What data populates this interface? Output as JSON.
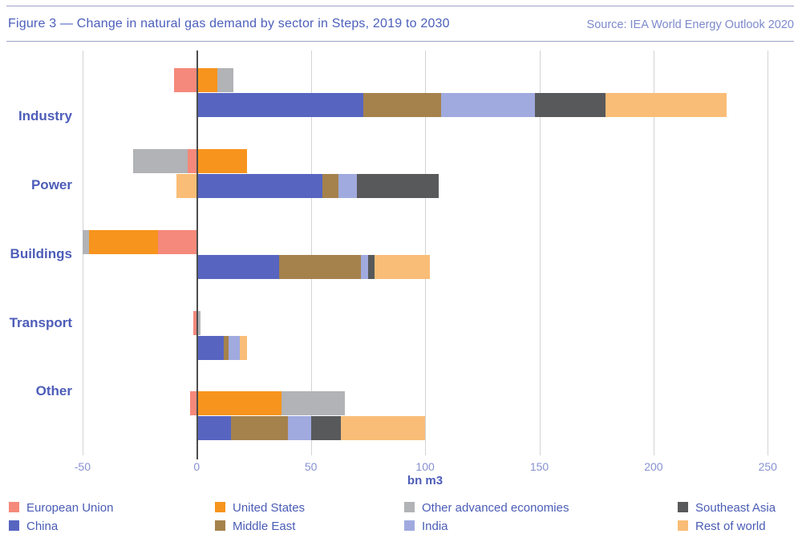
{
  "header": {
    "title": "Figure 3 — Change in natural gas demand by sector in Steps, 2019 to 2030",
    "source": "Source: IEA World Energy Outlook 2020"
  },
  "chart_data": {
    "type": "bar",
    "orientation": "horizontal",
    "stacked": true,
    "title": "Change in natural gas demand by sector in Steps, 2019 to 2030",
    "categories": [
      "Industry",
      "Power",
      "Buildings",
      "Transport",
      "Other"
    ],
    "xlabel": "bn m3",
    "xlim": [
      -50,
      250
    ],
    "x_ticks": [
      "-50",
      "0",
      "50",
      "100",
      "150",
      "200",
      "250"
    ],
    "x_tick_values": [
      -50,
      0,
      50,
      100,
      150,
      200,
      250
    ],
    "grid": true,
    "legend_position": "bottom",
    "note": "each sector has two stacked bars: top = advanced economies (EU, US, other advanced), bottom = China, Middle East, India, Southeast Asia, Rest of world; units bn m3",
    "series_top_bar": [
      {
        "name": "European Union",
        "color": "#F5897B",
        "values": [
          -10,
          -4,
          -17,
          -1.5,
          -3
        ]
      },
      {
        "name": "United States",
        "color": "#F7941D",
        "values": [
          9,
          22,
          -30,
          0,
          37
        ]
      },
      {
        "name": "Other advanced economies",
        "color": "#B1B3B6",
        "values": [
          7,
          -24,
          -3,
          1.5,
          28
        ]
      }
    ],
    "series_bottom_bar": [
      {
        "name": "China",
        "color": "#5765C1",
        "values": [
          73,
          55,
          36,
          12,
          15
        ]
      },
      {
        "name": "Middle East",
        "color": "#A5824C",
        "values": [
          34,
          7,
          36,
          2,
          25
        ]
      },
      {
        "name": "India",
        "color": "#A0AADF",
        "values": [
          41,
          8,
          3,
          5,
          10
        ]
      },
      {
        "name": "Southeast Asia",
        "color": "#58595B",
        "values": [
          31,
          36,
          3,
          0,
          13
        ]
      },
      {
        "name": "Rest of world",
        "color": "#F9BD77",
        "values": [
          53,
          -9,
          24,
          3,
          37
        ]
      }
    ]
  },
  "legend": {
    "row1": [
      {
        "label": "European Union",
        "color": "#F5897B"
      },
      {
        "label": "United States",
        "color": "#F7941D"
      },
      {
        "label": "Other advanced economies",
        "color": "#B1B3B6"
      },
      {
        "label": "Southeast Asia",
        "color": "#58595B"
      }
    ],
    "row2": [
      {
        "label": "China",
        "color": "#5765C1"
      },
      {
        "label": "Middle East",
        "color": "#A5824C"
      },
      {
        "label": "India",
        "color": "#A0AADF"
      },
      {
        "label": "Rest of world",
        "color": "#F9BD77"
      }
    ]
  },
  "colors": {
    "title_text": "#4C5FBB",
    "source_text": "#7D89CC",
    "sector_label": "#4D5DB8",
    "tick_label": "#8791D0",
    "gridline": "#D3D3D3",
    "zero_line": "#4D4D4D",
    "rule": "#9AA3C7",
    "background": "#FFFFFF"
  }
}
